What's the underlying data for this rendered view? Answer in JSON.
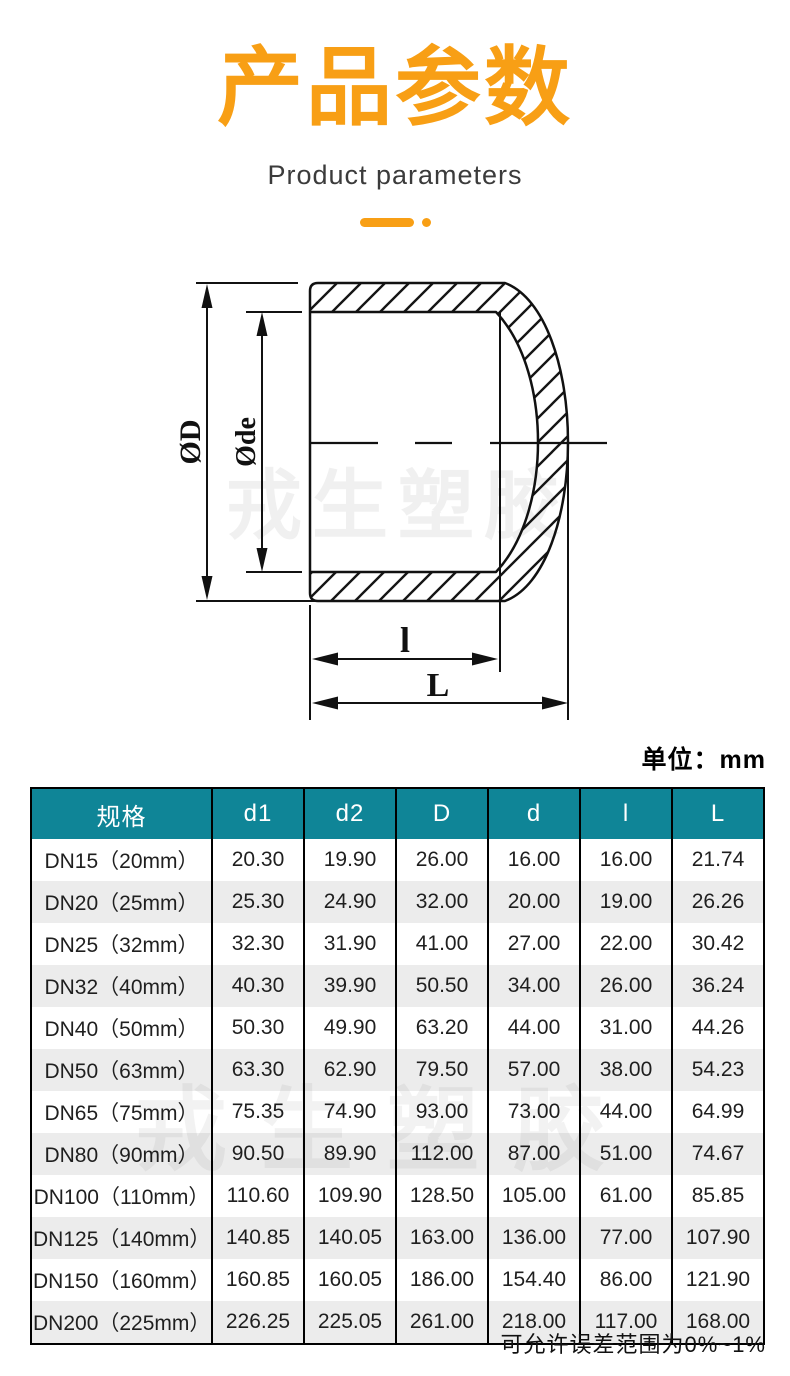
{
  "page": {
    "title": "产品参数",
    "subtitle": "Product parameters"
  },
  "diagram": {
    "watermark": "戎生塑胶",
    "labels": {
      "outer_diameter": "ØD",
      "socket_outer_diameter": "Øde",
      "socket_depth": "l",
      "overall_length": "L"
    }
  },
  "table": {
    "unit_label": "单位：mm",
    "columns": [
      "规格",
      "d1",
      "d2",
      "D",
      "d",
      "l",
      "L"
    ],
    "rows": [
      [
        "DN15（20mm）",
        "20.30",
        "19.90",
        "26.00",
        "16.00",
        "16.00",
        "21.74"
      ],
      [
        "DN20（25mm）",
        "25.30",
        "24.90",
        "32.00",
        "20.00",
        "19.00",
        "26.26"
      ],
      [
        "DN25（32mm）",
        "32.30",
        "31.90",
        "41.00",
        "27.00",
        "22.00",
        "30.42"
      ],
      [
        "DN32（40mm）",
        "40.30",
        "39.90",
        "50.50",
        "34.00",
        "26.00",
        "36.24"
      ],
      [
        "DN40（50mm）",
        "50.30",
        "49.90",
        "63.20",
        "44.00",
        "31.00",
        "44.26"
      ],
      [
        "DN50（63mm）",
        "63.30",
        "62.90",
        "79.50",
        "57.00",
        "38.00",
        "54.23"
      ],
      [
        "DN65（75mm）",
        "75.35",
        "74.90",
        "93.00",
        "73.00",
        "44.00",
        "64.99"
      ],
      [
        "DN80（90mm）",
        "90.50",
        "89.90",
        "112.00",
        "87.00",
        "51.00",
        "74.67"
      ],
      [
        "DN100（110mm）",
        "110.60",
        "109.90",
        "128.50",
        "105.00",
        "61.00",
        "85.85"
      ],
      [
        "DN125（140mm）",
        "140.85",
        "140.05",
        "163.00",
        "136.00",
        "77.00",
        "107.90"
      ],
      [
        "DN150（160mm）",
        "160.85",
        "160.05",
        "186.00",
        "154.40",
        "86.00",
        "121.90"
      ],
      [
        "DN200（225mm）",
        "226.25",
        "225.05",
        "261.00",
        "218.00",
        "117.00",
        "168.00"
      ]
    ],
    "footnote": "可允许误差范围为0%~1%"
  },
  "colors": {
    "accent_orange": "#F89F15",
    "header_teal": "#0F8597",
    "row_alt_gray": "#ECECEC"
  }
}
